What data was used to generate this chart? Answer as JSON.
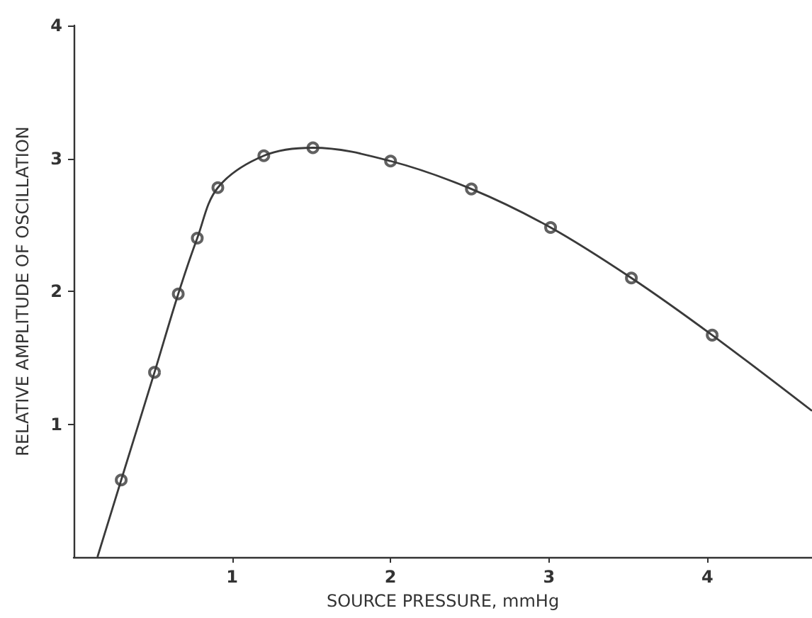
{
  "chart_data": {
    "type": "line",
    "xlabel": "SOURCE PRESSURE, mmHg",
    "ylabel": "RELATIVE AMPLITUDE OF OSCILLATION",
    "xlim": [
      0,
      4.66
    ],
    "xticks": [
      1,
      2,
      3,
      4
    ],
    "ylim": [
      0,
      4
    ],
    "yticks": [
      1,
      2,
      3,
      4
    ],
    "grid": false,
    "series": [
      {
        "color": "#3a3a3a",
        "marker": "none",
        "x": [
          0.15,
          0.3,
          0.51,
          0.66,
          0.78,
          0.91,
          1.2,
          1.51,
          2.0,
          2.51,
          3.01,
          3.52,
          4.03,
          4.66
        ],
        "values": [
          0,
          0.58,
          1.39,
          1.98,
          2.4,
          2.78,
          3.02,
          3.08,
          2.98,
          2.77,
          2.48,
          2.1,
          1.67,
          1.1
        ]
      },
      {
        "type": "scatter",
        "color": "#3a3a3a",
        "marker": "circle",
        "x": [
          0.3,
          0.51,
          0.66,
          0.78,
          0.91,
          1.2,
          1.51,
          2.0,
          2.51,
          3.01,
          3.52,
          4.03
        ],
        "values": [
          0.58,
          1.39,
          1.98,
          2.4,
          2.78,
          3.02,
          3.08,
          2.98,
          2.77,
          2.48,
          2.1,
          1.67
        ]
      }
    ]
  }
}
